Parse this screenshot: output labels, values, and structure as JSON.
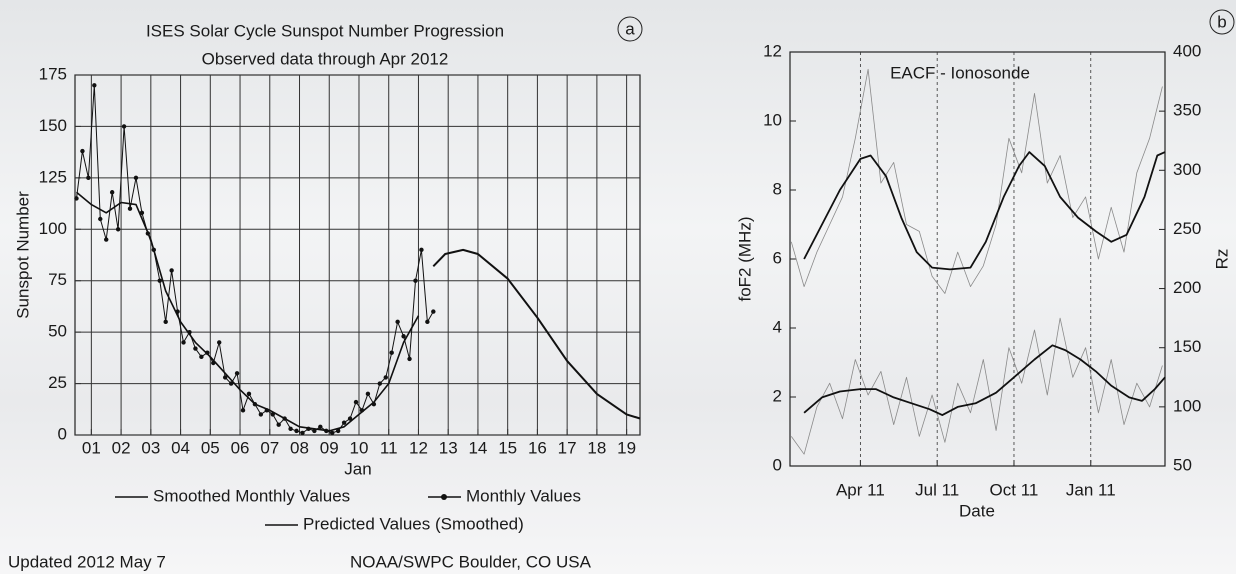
{
  "chart_data": [
    {
      "type": "line",
      "panel_label": "a",
      "title": "ISES Solar Cycle Sunspot Number Progression",
      "subtitle": "Observed data through Apr 2012",
      "xlabel": "Jan",
      "ylabel": "Sunspot Number",
      "xlim": [
        0.45,
        19.45
      ],
      "ylim": [
        0,
        175
      ],
      "xticks": [
        {
          "value": 1,
          "label": "01"
        },
        {
          "value": 2,
          "label": "02"
        },
        {
          "value": 3,
          "label": "03"
        },
        {
          "value": 4,
          "label": "04"
        },
        {
          "value": 5,
          "label": "05"
        },
        {
          "value": 6,
          "label": "06"
        },
        {
          "value": 7,
          "label": "07"
        },
        {
          "value": 8,
          "label": "08"
        },
        {
          "value": 9,
          "label": "09"
        },
        {
          "value": 10,
          "label": "10"
        },
        {
          "value": 11,
          "label": "11"
        },
        {
          "value": 12,
          "label": "12"
        },
        {
          "value": 13,
          "label": "13"
        },
        {
          "value": 14,
          "label": "14"
        },
        {
          "value": 15,
          "label": "15"
        },
        {
          "value": 16,
          "label": "16"
        },
        {
          "value": 17,
          "label": "17"
        },
        {
          "value": 18,
          "label": "18"
        },
        {
          "value": 19,
          "label": "19"
        }
      ],
      "yticks": [
        0,
        25,
        50,
        75,
        100,
        125,
        150,
        175
      ],
      "grid": true,
      "series": [
        {
          "name": "Smoothed Monthly Values",
          "color": "#111111",
          "width": 1.6,
          "x": [
            0.5,
            1.0,
            1.5,
            2.0,
            2.5,
            3.0,
            3.5,
            4.0,
            4.5,
            5.0,
            5.5,
            6.0,
            6.5,
            7.0,
            7.5,
            8.0,
            8.5,
            9.0,
            9.5,
            10.0,
            10.5,
            11.0,
            11.5,
            12.0
          ],
          "values": [
            118,
            112,
            108,
            113,
            112,
            95,
            70,
            55,
            45,
            38,
            30,
            22,
            15,
            12,
            8,
            4,
            3,
            2,
            4,
            10,
            16,
            25,
            45,
            58
          ]
        },
        {
          "name": "Monthly Values",
          "color": "#111111",
          "width": 1,
          "marker": true,
          "x": [
            0.5,
            0.7,
            0.9,
            1.1,
            1.3,
            1.5,
            1.7,
            1.9,
            2.1,
            2.3,
            2.5,
            2.7,
            2.9,
            3.1,
            3.3,
            3.5,
            3.7,
            3.9,
            4.1,
            4.3,
            4.5,
            4.7,
            4.9,
            5.1,
            5.3,
            5.5,
            5.7,
            5.9,
            6.1,
            6.3,
            6.5,
            6.7,
            6.9,
            7.1,
            7.3,
            7.5,
            7.7,
            7.9,
            8.1,
            8.3,
            8.5,
            8.7,
            8.9,
            9.1,
            9.3,
            9.5,
            9.7,
            9.9,
            10.1,
            10.3,
            10.5,
            10.7,
            10.9,
            11.1,
            11.3,
            11.5,
            11.7,
            11.9,
            12.1,
            12.3,
            12.5
          ],
          "values": [
            115,
            138,
            125,
            170,
            105,
            95,
            118,
            100,
            150,
            110,
            125,
            108,
            98,
            90,
            75,
            55,
            80,
            60,
            45,
            50,
            42,
            38,
            40,
            35,
            45,
            28,
            25,
            30,
            12,
            20,
            15,
            10,
            12,
            10,
            5,
            8,
            3,
            2,
            1,
            3,
            2,
            4,
            2,
            1,
            2,
            6,
            8,
            16,
            12,
            20,
            15,
            25,
            28,
            40,
            55,
            48,
            37,
            75,
            90,
            55,
            60
          ]
        },
        {
          "name": "Predicted Values (Smoothed)",
          "color": "#111111",
          "width": 2,
          "x": [
            12.5,
            12.9,
            13.5,
            14.0,
            15.0,
            16.0,
            17.0,
            18.0,
            19.0,
            19.45
          ],
          "values": [
            82,
            88,
            90,
            88,
            76,
            57,
            36,
            20,
            10,
            8
          ]
        }
      ],
      "updated": "Updated 2012 May 7",
      "source": "NOAA/SWPC Boulder, CO USA"
    },
    {
      "type": "line",
      "panel_label": "b",
      "annotation": "EACF - Ionosonde",
      "xlabel": "Date",
      "ylabel": "foF2 (MHz)",
      "y2label": "Rz",
      "xlim": [
        0.25,
        14.9
      ],
      "ylim": [
        0,
        12
      ],
      "y2lim": [
        50,
        400
      ],
      "xticks": [
        {
          "value": 3,
          "label": "Apr 11"
        },
        {
          "value": 6,
          "label": "Jul 11"
        },
        {
          "value": 9,
          "label": "Oct 11"
        },
        {
          "value": 12,
          "label": "Jan 11"
        }
      ],
      "yticks": [
        0,
        2,
        4,
        6,
        8,
        10,
        12
      ],
      "y2ticks": [
        50,
        100,
        150,
        200,
        250,
        300,
        350,
        400
      ],
      "grid": "x-dashed",
      "series": [
        {
          "color": "#8a8a8a",
          "width": 0.8,
          "x": [
            0.3,
            0.8,
            1.3,
            1.8,
            2.3,
            2.8,
            3.3,
            3.8,
            4.3,
            4.8,
            5.3,
            5.8,
            6.3,
            6.8,
            7.3,
            7.8,
            8.3,
            8.8,
            9.3,
            9.8,
            10.3,
            10.8,
            11.3,
            11.8,
            12.3,
            12.8,
            13.3,
            13.8,
            14.3,
            14.8
          ],
          "values": [
            6.5,
            5.2,
            6.2,
            7.0,
            7.8,
            9.5,
            11.5,
            8.2,
            8.8,
            7.0,
            6.8,
            5.5,
            5.0,
            6.2,
            5.2,
            5.8,
            7.0,
            9.5,
            8.5,
            10.8,
            8.2,
            9.0,
            7.2,
            7.8,
            6.0,
            7.5,
            6.2,
            8.5,
            9.5,
            11.0
          ]
        },
        {
          "color": "#8a8a8a",
          "width": 0.8,
          "axis": "y2",
          "x": [
            0.3,
            0.8,
            1.3,
            1.8,
            2.3,
            2.8,
            3.3,
            3.8,
            4.3,
            4.8,
            5.3,
            5.8,
            6.3,
            6.8,
            7.3,
            7.8,
            8.3,
            8.8,
            9.3,
            9.8,
            10.3,
            10.8,
            11.3,
            11.8,
            12.3,
            12.8,
            13.3,
            13.8,
            14.3,
            14.8
          ],
          "values": [
            75,
            60,
            100,
            120,
            90,
            140,
            110,
            130,
            85,
            125,
            75,
            110,
            70,
            120,
            95,
            140,
            80,
            150,
            120,
            165,
            110,
            175,
            125,
            150,
            95,
            140,
            85,
            120,
            100,
            135
          ]
        },
        {
          "color": "#111111",
          "width": 1.8,
          "x": [
            0.8,
            1.5,
            2.2,
            3.0,
            3.4,
            4.0,
            4.6,
            5.2,
            5.8,
            6.5,
            7.3,
            7.9,
            8.6,
            9.2,
            9.6,
            10.2,
            10.8,
            11.5,
            12.2,
            12.8,
            13.4,
            14.1,
            14.6,
            14.9
          ],
          "values": [
            6.0,
            7.0,
            8.0,
            8.9,
            9.0,
            8.4,
            7.2,
            6.2,
            5.75,
            5.7,
            5.75,
            6.5,
            7.8,
            8.7,
            9.1,
            8.7,
            7.8,
            7.2,
            6.8,
            6.5,
            6.7,
            7.8,
            9.0,
            9.1
          ]
        },
        {
          "color": "#111111",
          "width": 1.8,
          "axis": "y2",
          "x": [
            0.8,
            1.5,
            2.2,
            3.0,
            3.6,
            4.3,
            5.0,
            5.7,
            6.2,
            6.8,
            7.5,
            8.3,
            9.0,
            9.8,
            10.5,
            11.0,
            11.6,
            12.2,
            12.8,
            13.5,
            14.0,
            14.5,
            14.9
          ],
          "values": [
            95,
            108,
            113,
            115,
            115,
            108,
            103,
            98,
            93,
            100,
            103,
            112,
            125,
            140,
            152,
            148,
            140,
            130,
            118,
            108,
            105,
            115,
            125
          ]
        }
      ]
    }
  ]
}
